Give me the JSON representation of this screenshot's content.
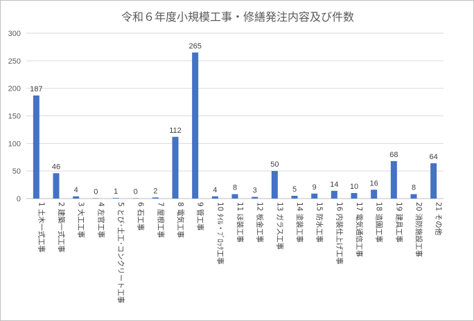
{
  "chart_data": {
    "type": "bar",
    "title": "令和６年度小規模工事・修繕発注内容及び件数",
    "categories": [
      "1 土木一式工事",
      "2 建築一式工事",
      "3 大工工事",
      "4 左官工事",
      "5 とび･土工･コンクリート工事",
      "6 石工事",
      "7 屋根工事",
      "8 電気工事",
      "9 管工事",
      "10 ﾀｲﾙ・ﾌﾞﾛｯｸ工事",
      "11 ほ装工事",
      "12 板金工事",
      "13 ガラス工事",
      "14 塗装工事",
      "15 防水工事",
      "16 内装仕上げ工事",
      "17 電気通信工事",
      "18 造園工事",
      "19 建具工事",
      "20 消防施設工事",
      "21 その他"
    ],
    "values": [
      187,
      46,
      4,
      0,
      1,
      0,
      2,
      112,
      265,
      4,
      8,
      3,
      50,
      5,
      9,
      14,
      10,
      16,
      68,
      8,
      64
    ],
    "ylim": [
      0,
      300
    ],
    "yticks": [
      0,
      50,
      100,
      150,
      200,
      250,
      300
    ],
    "grid": true,
    "bar_color": "#4472C4"
  }
}
